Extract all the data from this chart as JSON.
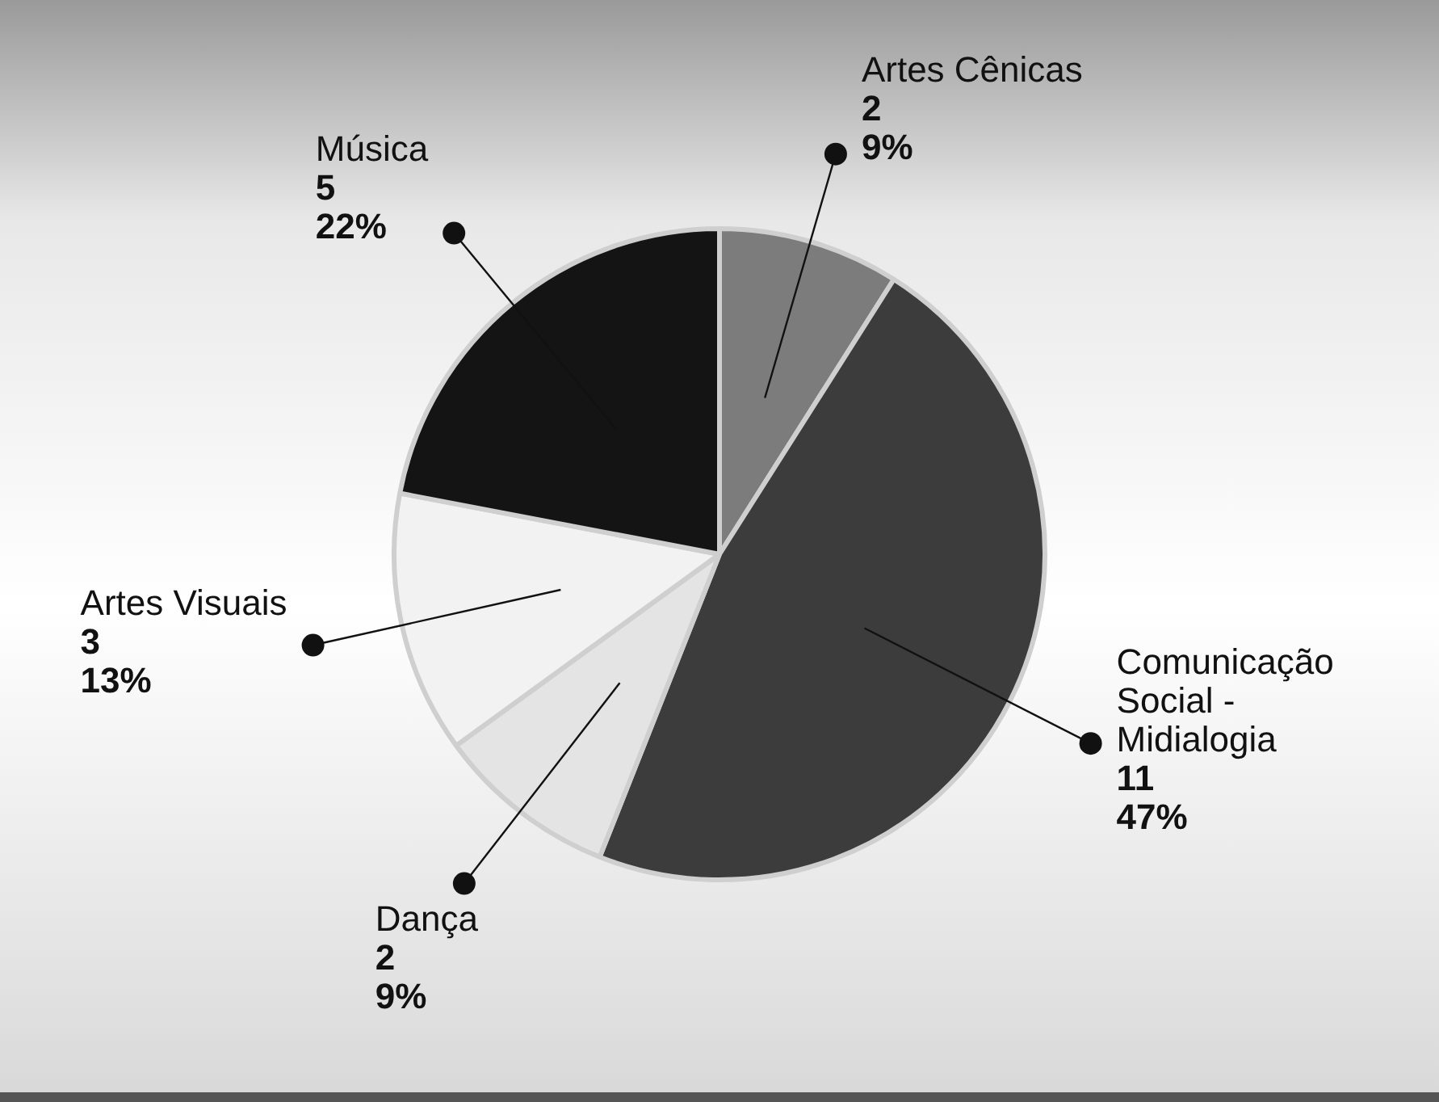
{
  "chart_data": {
    "type": "pie",
    "categories": [
      "Artes Cênicas",
      "Comunicação Social - Midialogia",
      "Dança",
      "Artes Visuais",
      "Música"
    ],
    "values": [
      9,
      47,
      9,
      13,
      22
    ],
    "colors": [
      "#7c7c7c",
      "#3c3c3c",
      "#e4e4e4",
      "#f2f2f2",
      "#141414"
    ],
    "value_labels": [
      "2\n9%",
      "11\n47%",
      "2\n9%",
      "3\n13%",
      "5\n22%"
    ],
    "legend": false
  }
}
